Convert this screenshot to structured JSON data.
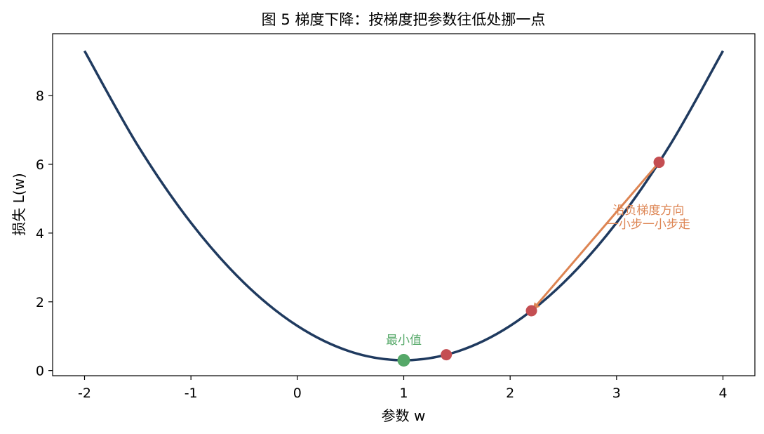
{
  "chart_data": {
    "type": "line",
    "title": "图 5  梯度下降：按梯度把参数往低处挪一点",
    "xlabel": "参数 w",
    "ylabel": "损失 L(w)",
    "xlim": [
      -2.3,
      4.3
    ],
    "ylim": [
      -0.15,
      9.8
    ],
    "grid": false,
    "x_ticks": [
      -2,
      -1,
      0,
      1,
      2,
      3,
      4
    ],
    "y_ticks": [
      0,
      2,
      4,
      6,
      8
    ],
    "curve": {
      "x": [
        -2.0,
        -1.5,
        -1.0,
        -0.5,
        0.0,
        0.5,
        1.0,
        1.5,
        2.0,
        2.5,
        3.0,
        3.5,
        4.0
      ],
      "y": [
        9.3,
        6.55,
        4.3,
        2.55,
        1.3,
        0.55,
        0.3,
        0.55,
        1.3,
        2.55,
        4.3,
        6.55,
        9.3
      ],
      "color": "#1f3a5f"
    },
    "minimum": {
      "x": 1.0,
      "y": 0.3,
      "label": "最小值",
      "color": "#55a868"
    },
    "steps": {
      "x": [
        3.4,
        2.2,
        1.4
      ],
      "y": [
        6.06,
        1.74,
        0.46
      ],
      "color": "#c44e52"
    },
    "arrow": {
      "from": [
        3.4,
        6.06
      ],
      "to": [
        2.22,
        1.8
      ],
      "label_lines": [
        "沿负梯度方向",
        "一小步一小步走"
      ],
      "label_anchor": [
        3.3,
        4.55
      ],
      "color": "#dd8452"
    }
  }
}
